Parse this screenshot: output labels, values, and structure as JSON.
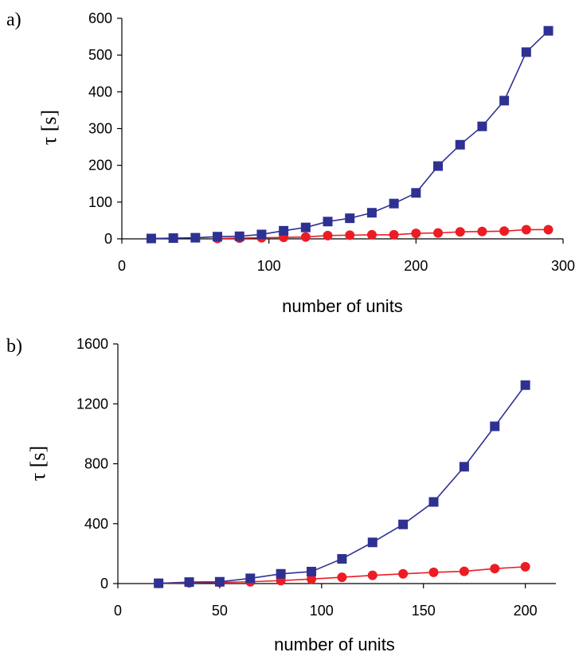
{
  "colors": {
    "series_square": "#2e3192",
    "series_circle": "#ed1c24"
  },
  "chart_data": [
    {
      "panel_label": "a)",
      "type": "line",
      "xlabel": "number of units",
      "ylabel": "τ [s]",
      "xlim": [
        0,
        300
      ],
      "ylim": [
        0,
        600
      ],
      "xticks": [
        0,
        100,
        200,
        300
      ],
      "yticks": [
        0,
        100,
        200,
        300,
        400,
        500,
        600
      ],
      "grid": false,
      "series": [
        {
          "marker": "square",
          "color": "#2e3192",
          "x": [
            20,
            35,
            50,
            65,
            80,
            95,
            110,
            125,
            140,
            155,
            170,
            185,
            200,
            215,
            230,
            245,
            260,
            275,
            290
          ],
          "y": [
            1,
            2,
            3,
            6,
            7,
            12,
            22,
            31,
            47,
            56,
            71,
            96,
            125,
            198,
            256,
            306,
            376,
            508,
            566
          ]
        },
        {
          "marker": "circle",
          "color": "#ed1c24",
          "x": [
            65,
            80,
            95,
            110,
            125,
            140,
            155,
            170,
            185,
            200,
            215,
            230,
            245,
            260,
            275,
            290
          ],
          "y": [
            1,
            2,
            3,
            4,
            5,
            9,
            10,
            11,
            11,
            15,
            16,
            19,
            20,
            21,
            25,
            25
          ]
        }
      ]
    },
    {
      "panel_label": "b)",
      "type": "line",
      "xlabel": "number of units",
      "ylabel": "τ [s]",
      "xlim": [
        0,
        215
      ],
      "ylim": [
        0,
        1600
      ],
      "xticks": [
        0,
        50,
        100,
        150,
        200
      ],
      "yticks": [
        0,
        400,
        800,
        1200,
        1600
      ],
      "grid": false,
      "series": [
        {
          "marker": "square",
          "color": "#2e3192",
          "x": [
            20,
            35,
            50,
            65,
            80,
            95,
            110,
            125,
            140,
            155,
            170,
            185,
            200
          ],
          "y": [
            2,
            10,
            12,
            35,
            65,
            80,
            165,
            275,
            395,
            545,
            780,
            1050,
            1325
          ]
        },
        {
          "marker": "circle",
          "color": "#ed1c24",
          "x": [
            20,
            35,
            50,
            65,
            80,
            95,
            110,
            125,
            140,
            155,
            170,
            185,
            200
          ],
          "y": [
            1,
            5,
            8,
            12,
            20,
            30,
            42,
            55,
            65,
            75,
            82,
            100,
            112
          ]
        }
      ]
    }
  ]
}
